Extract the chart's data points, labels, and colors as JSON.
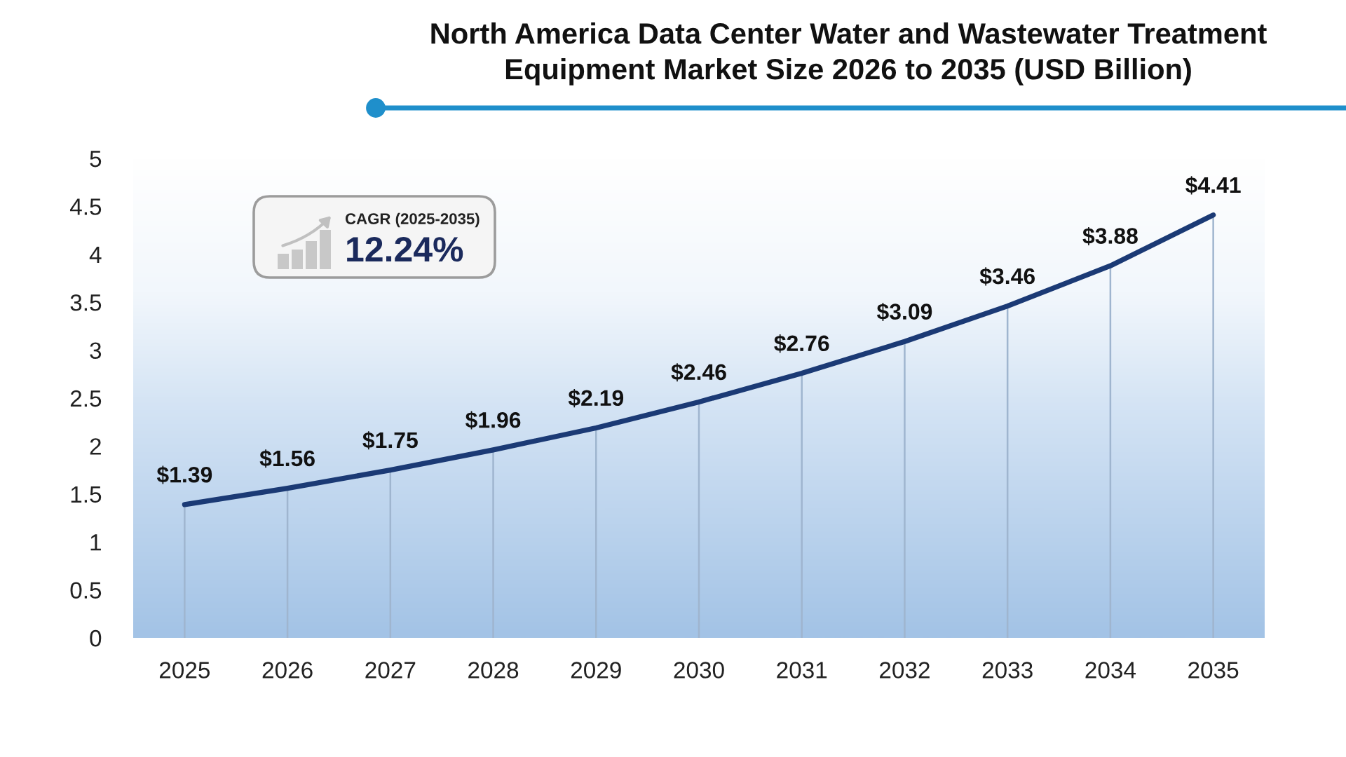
{
  "chart_data": {
    "type": "line",
    "title": "North America Data Center Water and Wastewater Treatment Equipment Market Size 2026 to 2035 (USD Billion)",
    "categories": [
      "2025",
      "2026",
      "2027",
      "2028",
      "2029",
      "2030",
      "2031",
      "2032",
      "2033",
      "2034",
      "2035"
    ],
    "values": [
      1.39,
      1.56,
      1.75,
      1.96,
      2.19,
      2.46,
      2.76,
      3.09,
      3.46,
      3.88,
      4.41
    ],
    "value_labels": [
      "$1.39",
      "$1.56",
      "$1.75",
      "$1.96",
      "$2.19",
      "$2.46",
      "$2.76",
      "$3.09",
      "$3.46",
      "$3.88",
      "$4.41"
    ],
    "color": "#1b3a75",
    "ylim": [
      0,
      5
    ],
    "yticks": [
      0,
      0.5,
      1,
      1.5,
      2,
      2.5,
      3,
      3.5,
      4,
      4.5,
      5
    ],
    "grid": "x",
    "annotations": [
      "CAGR (2025-2035)",
      "12.24%"
    ]
  }
}
